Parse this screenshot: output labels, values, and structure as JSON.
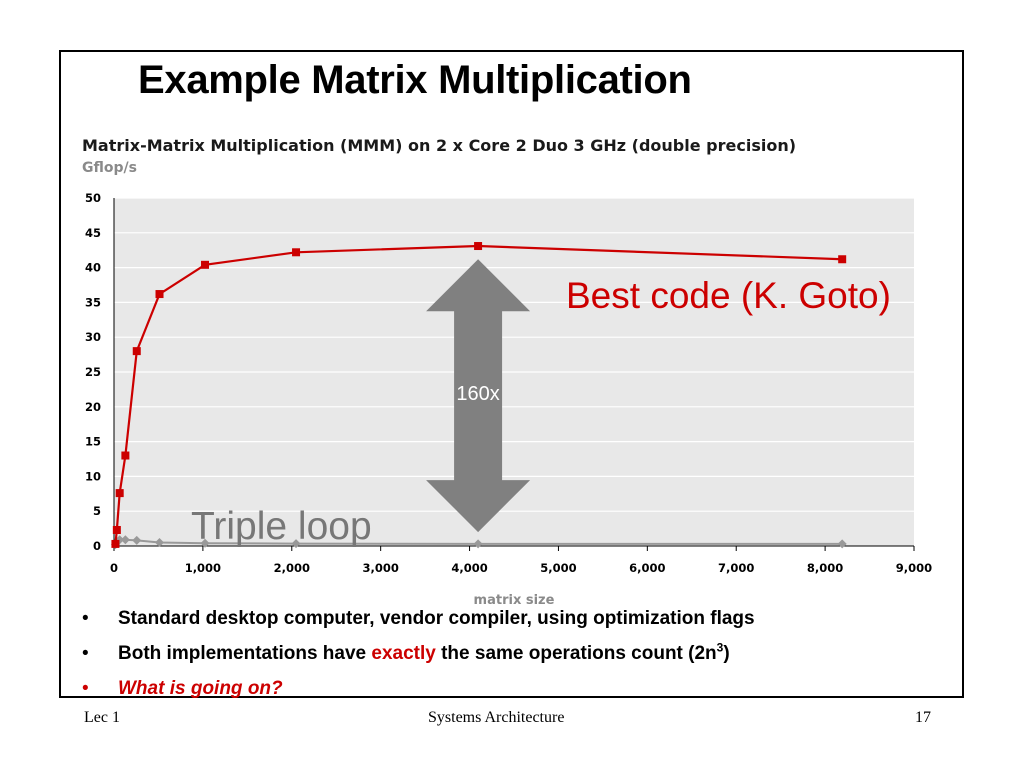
{
  "slide": {
    "title": "Example Matrix Multiplication",
    "footer": {
      "left": "Lec 1",
      "center": "Systems Architecture",
      "right": "17"
    },
    "bullets": [
      {
        "text": "Standard desktop computer, vendor compiler, using optimization flags"
      },
      {
        "before": "Both implementations have ",
        "highlight": "exactly",
        "after": " the same operations count (2n",
        "sup": "3",
        "end": ")"
      },
      {
        "text": "What is going on?"
      }
    ]
  },
  "colors": {
    "best": "#cc0000",
    "triple": "#999999",
    "plot_bg": "#e8e8e8",
    "arrow": "#808080",
    "ylabel": "#8a8a8a"
  },
  "chart_data": {
    "type": "line",
    "title": "Matrix-Matrix Multiplication (MMM) on 2 x Core 2 Duo 3 GHz (double precision)",
    "ylabel": "Gflop/s",
    "xlabel": "matrix size",
    "xlim": [
      0,
      9000
    ],
    "ylim": [
      0,
      50
    ],
    "xticks": [
      "0",
      "1,000",
      "2,000",
      "3,000",
      "4,000",
      "5,000",
      "6,000",
      "7,000",
      "8,000",
      "9,000"
    ],
    "yticks": [
      "0",
      "5",
      "10",
      "15",
      "20",
      "25",
      "30",
      "35",
      "40",
      "45",
      "50"
    ],
    "grid": true,
    "series": [
      {
        "key": "best",
        "x": [
          16,
          32,
          64,
          128,
          256,
          512,
          1024,
          2048,
          4096,
          8192
        ],
        "y": [
          0.3,
          2.3,
          7.6,
          13.0,
          28.0,
          36.2,
          40.4,
          42.2,
          43.1,
          41.2
        ]
      },
      {
        "key": "triple",
        "x": [
          16,
          32,
          64,
          128,
          256,
          512,
          1024,
          2048,
          4096,
          8192
        ],
        "y": [
          0.2,
          0.6,
          0.9,
          0.9,
          0.8,
          0.5,
          0.4,
          0.35,
          0.3,
          0.3
        ]
      }
    ],
    "annotations": [
      {
        "key": "best",
        "text": "Best code (K. Goto)"
      },
      {
        "key": "triple",
        "text": "Triple loop"
      },
      {
        "key": "ratio",
        "text": "160x"
      }
    ]
  }
}
